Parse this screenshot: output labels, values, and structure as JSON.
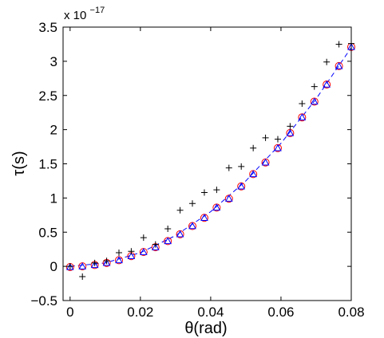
{
  "chart_data": {
    "type": "scatter",
    "title": "",
    "xlabel": "θ(rad)",
    "ylabel": "τ(s)",
    "y_multiplier_base": "x 10",
    "y_multiplier_exp": "−17",
    "xlim": [
      -0.002,
      0.08
    ],
    "ylim": [
      -0.5,
      3.5
    ],
    "xticks": [
      0,
      0.02,
      0.04,
      0.06,
      0.08
    ],
    "xtick_labels": [
      "0",
      "0.02",
      "0.04",
      "0.06",
      "0.08"
    ],
    "yticks": [
      -0.5,
      0,
      0.5,
      1,
      1.5,
      2,
      2.5,
      3,
      3.5
    ],
    "ytick_labels": [
      "−0.5",
      "0",
      "0.5",
      "1",
      "1.5",
      "2",
      "2.5",
      "3",
      "3.5"
    ],
    "grid": false,
    "legend": "none",
    "series": [
      {
        "marker": "plus",
        "color": "#000000",
        "x": [
          0,
          0.0035,
          0.007,
          0.0104,
          0.0139,
          0.0174,
          0.0209,
          0.0243,
          0.0278,
          0.0313,
          0.0348,
          0.0382,
          0.0417,
          0.0452,
          0.0487,
          0.0521,
          0.0556,
          0.0591,
          0.0626,
          0.066,
          0.0695,
          0.073,
          0.0765,
          0.08
        ],
        "y": [
          0,
          -0.15,
          0.05,
          0.08,
          0.2,
          0.22,
          0.42,
          0.32,
          0.55,
          0.82,
          0.92,
          1.08,
          1.12,
          1.44,
          1.46,
          1.73,
          1.88,
          1.86,
          2.05,
          2.38,
          2.63,
          2.99,
          3.25,
          3.26
        ]
      },
      {
        "marker": "circle",
        "color": "#ff0000",
        "x": [
          0,
          0.0035,
          0.007,
          0.0104,
          0.0139,
          0.0174,
          0.0209,
          0.0243,
          0.0278,
          0.0313,
          0.0348,
          0.0382,
          0.0417,
          0.0452,
          0.0487,
          0.0521,
          0.0556,
          0.0591,
          0.0626,
          0.066,
          0.0695,
          0.073,
          0.0765,
          0.08
        ],
        "y": [
          -0.01,
          0.0,
          0.02,
          0.05,
          0.09,
          0.15,
          0.21,
          0.28,
          0.37,
          0.47,
          0.59,
          0.71,
          0.86,
          0.99,
          1.17,
          1.35,
          1.52,
          1.73,
          1.95,
          2.18,
          2.41,
          2.66,
          2.93,
          3.21
        ]
      },
      {
        "marker": "triangle",
        "color": "#0000ff",
        "x": [
          0,
          0.0035,
          0.007,
          0.0104,
          0.0139,
          0.0174,
          0.0209,
          0.0243,
          0.0278,
          0.0313,
          0.0348,
          0.0382,
          0.0417,
          0.0452,
          0.0487,
          0.0521,
          0.0556,
          0.0591,
          0.0626,
          0.066,
          0.0695,
          0.073,
          0.0765,
          0.08
        ],
        "y": [
          -0.01,
          0.0,
          0.02,
          0.05,
          0.09,
          0.15,
          0.21,
          0.28,
          0.37,
          0.47,
          0.59,
          0.71,
          0.86,
          0.99,
          1.17,
          1.35,
          1.52,
          1.73,
          1.95,
          2.18,
          2.41,
          2.66,
          2.93,
          3.21
        ]
      },
      {
        "marker": "dashed-line",
        "color": "#0000ff",
        "x": [
          0,
          0.01,
          0.02,
          0.03,
          0.04,
          0.05,
          0.06,
          0.07,
          0.08
        ],
        "y": [
          0,
          0.05,
          0.2,
          0.45,
          0.8,
          1.25,
          1.8,
          2.45,
          3.2
        ]
      }
    ]
  }
}
